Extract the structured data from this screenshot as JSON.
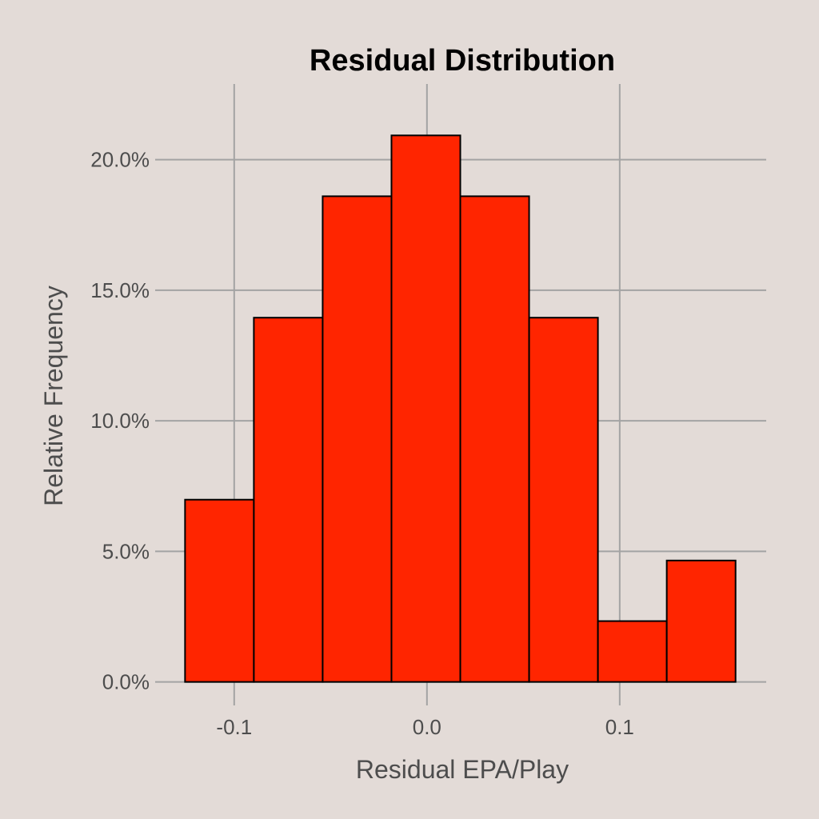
{
  "chart_data": {
    "type": "bar",
    "title": "Residual Distribution",
    "xlabel": "Residual EPA/Play",
    "ylabel": "Relative Frequency",
    "bin_edges": [
      -0.1255,
      -0.0898,
      -0.0541,
      -0.0184,
      0.0173,
      0.053,
      0.0887,
      0.1244,
      0.1601
    ],
    "values": [
      6.98,
      13.95,
      18.6,
      20.93,
      18.6,
      13.95,
      2.33,
      4.65
    ],
    "xlim": [
      -0.141,
      0.176
    ],
    "ylim": [
      -0.9,
      22.9
    ],
    "xticks": [
      -0.1,
      0.0,
      0.1
    ],
    "xtick_labels": [
      "-0.1",
      "0.0",
      "0.1"
    ],
    "yticks": [
      0,
      5,
      10,
      15,
      20
    ],
    "ytick_labels": [
      "0.0%",
      "5.0%",
      "10.0%",
      "15.0%",
      "20.0%"
    ],
    "grid": true,
    "bar_color": "#ff2500",
    "bar_edge_color": "#000000",
    "background_color": "#e3dbd7",
    "grid_color": "#a3a3a3"
  }
}
